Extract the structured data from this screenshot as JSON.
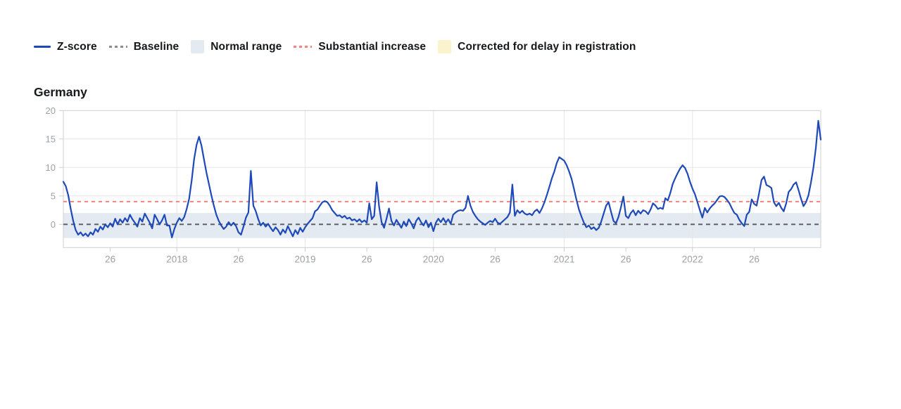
{
  "title": "Germany",
  "legend": {
    "items": [
      {
        "label": "Z-score",
        "swatch": "line",
        "color": "#1e49b8"
      },
      {
        "label": "Baseline",
        "swatch": "dotted-line",
        "color": "#8c8c8c"
      },
      {
        "label": "Normal range",
        "swatch": "box",
        "color": "#e4eaf1"
      },
      {
        "label": "Substantial increase",
        "swatch": "dotted-line",
        "color": "#f4837c"
      },
      {
        "label": "Corrected for delay in registration",
        "swatch": "box",
        "color": "#fbf3cd"
      }
    ]
  },
  "chart_data": {
    "type": "line",
    "title": "Germany",
    "x_unit": "ISO week",
    "x_start_week": "2017-W07",
    "ylim": [
      -4.07,
      20.0
    ],
    "yticks": [
      0,
      5,
      10,
      15,
      20
    ],
    "xticks": [
      {
        "label": "26",
        "week_index": 19
      },
      {
        "label": "2018",
        "week_index": 46
      },
      {
        "label": "26",
        "week_index": 71
      },
      {
        "label": "2019",
        "week_index": 98
      },
      {
        "label": "26",
        "week_index": 123
      },
      {
        "label": "2020",
        "week_index": 150
      },
      {
        "label": "26",
        "week_index": 175
      },
      {
        "label": "2021",
        "week_index": 203
      },
      {
        "label": "26",
        "week_index": 228
      },
      {
        "label": "2022",
        "week_index": 255
      },
      {
        "label": "26",
        "week_index": 280
      }
    ],
    "year_gridline_indices": [
      46,
      98,
      150,
      203,
      255
    ],
    "baseline": 0,
    "substantial_increase_threshold": 4,
    "normal_range": [
      -2.4,
      2.0
    ],
    "grid": true,
    "legend_position": "top",
    "colors": {
      "line": "#1e49b8",
      "baseline": "#5f6368",
      "normal_range": "#e4eaf1",
      "substantial_increase": "#f4837c",
      "corrected": "#fbf3cd",
      "grid": "#e5e5e5",
      "border": "#cfcfcf",
      "tick_label": "#9ba1a6"
    },
    "series": [
      {
        "name": "Z-score",
        "color": "#1e49b8",
        "values": [
          7.5,
          6.7,
          5.1,
          2.7,
          0.6,
          -1.0,
          -1.8,
          -1.4,
          -2.0,
          -1.6,
          -2.1,
          -1.4,
          -1.8,
          -0.8,
          -1.3,
          -0.4,
          -0.9,
          0.0,
          -0.5,
          0.2,
          -0.4,
          1.0,
          0.0,
          0.9,
          0.3,
          1.1,
          0.5,
          1.7,
          0.9,
          0.3,
          -0.4,
          1.1,
          0.5,
          1.9,
          1.1,
          0.3,
          -0.7,
          1.7,
          0.9,
          0.0,
          0.7,
          1.7,
          -0.2,
          -0.2,
          -2.3,
          -0.8,
          0.3,
          1.1,
          0.6,
          1.3,
          2.7,
          4.5,
          7.7,
          11.5,
          14.0,
          15.4,
          13.8,
          11.4,
          9.1,
          7.1,
          5.1,
          3.3,
          1.7,
          0.6,
          -0.2,
          -0.8,
          -0.4,
          0.4,
          -0.2,
          0.3,
          -0.3,
          -1.4,
          -1.8,
          -0.4,
          1.2,
          2.1,
          9.4,
          3.3,
          2.3,
          0.9,
          -0.2,
          0.3,
          -0.4,
          0.1,
          -0.6,
          -1.2,
          -0.5,
          -1.0,
          -1.8,
          -0.9,
          -1.5,
          -0.3,
          -1.2,
          -2.1,
          -1.0,
          -1.7,
          -0.6,
          -1.3,
          -0.5,
          0.1,
          0.6,
          1.1,
          2.3,
          2.6,
          3.3,
          3.9,
          4.1,
          3.9,
          3.3,
          2.5,
          2.0,
          1.5,
          1.6,
          1.2,
          1.5,
          1.0,
          1.2,
          0.7,
          0.9,
          0.5,
          0.9,
          0.4,
          0.7,
          0.3,
          3.7,
          0.9,
          1.5,
          7.4,
          3.1,
          0.4,
          -0.6,
          1.0,
          2.8,
          0.6,
          -0.2,
          0.8,
          0.1,
          -0.6,
          0.5,
          -0.3,
          0.9,
          0.2,
          -0.7,
          0.6,
          1.2,
          0.4,
          -0.2,
          0.7,
          -0.5,
          0.3,
          -1.2,
          0.3,
          1.0,
          0.4,
          1.1,
          0.3,
          0.9,
          0.1,
          1.7,
          2.1,
          2.4,
          2.5,
          2.4,
          2.9,
          5.0,
          3.3,
          2.2,
          1.5,
          0.9,
          0.5,
          0.2,
          -0.1,
          0.3,
          0.6,
          0.4,
          1.0,
          0.3,
          0.1,
          0.5,
          0.9,
          1.3,
          2.1,
          7.0,
          1.5,
          2.5,
          2.0,
          2.4,
          1.9,
          1.7,
          1.9,
          1.6,
          2.3,
          2.6,
          2.0,
          2.8,
          3.9,
          5.2,
          6.6,
          8.1,
          9.3,
          10.8,
          11.8,
          11.5,
          11.2,
          10.4,
          9.3,
          8.0,
          6.2,
          4.3,
          2.6,
          1.4,
          0.3,
          -0.5,
          -0.2,
          -0.8,
          -0.5,
          -1.0,
          -0.6,
          0.5,
          1.9,
          3.3,
          3.9,
          2.2,
          0.6,
          0.2,
          1.3,
          3.0,
          4.9,
          1.5,
          1.1,
          2.0,
          2.5,
          1.6,
          2.4,
          1.9,
          2.5,
          2.3,
          1.8,
          2.6,
          3.7,
          3.3,
          2.7,
          2.9,
          2.7,
          4.6,
          4.2,
          5.5,
          7.1,
          8.1,
          9.0,
          9.8,
          10.4,
          9.9,
          8.9,
          7.5,
          6.3,
          5.3,
          3.9,
          2.5,
          1.2,
          2.9,
          2.1,
          2.8,
          3.3,
          3.7,
          4.3,
          4.9,
          5.0,
          4.8,
          4.3,
          3.7,
          2.8,
          2.0,
          1.7,
          0.8,
          0.2,
          -0.3,
          1.7,
          2.2,
          4.4,
          3.6,
          3.3,
          5.5,
          7.8,
          8.4,
          6.9,
          6.7,
          6.4,
          3.9,
          3.2,
          3.8,
          2.9,
          2.3,
          3.7,
          5.7,
          6.2,
          7.0,
          7.4,
          6.0,
          4.5,
          3.2,
          3.9,
          5.1,
          7.3,
          9.9,
          13.4,
          18.2,
          14.9
        ]
      }
    ]
  }
}
